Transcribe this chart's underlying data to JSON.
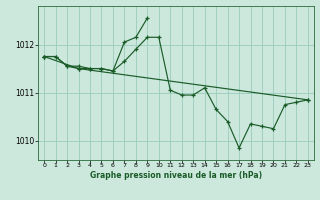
{
  "title": "Graphe pression niveau de la mer (hPa)",
  "background_color": "#cce8dd",
  "grid_color": "#99ccbb",
  "line_color": "#1a5c28",
  "marker_color": "#1a5c28",
  "xlim": [
    -0.5,
    23.5
  ],
  "ylim": [
    1009.6,
    1012.8
  ],
  "yticks": [
    1010,
    1011,
    1012
  ],
  "xticks": [
    0,
    1,
    2,
    3,
    4,
    5,
    6,
    7,
    8,
    9,
    10,
    11,
    12,
    13,
    14,
    15,
    16,
    17,
    18,
    19,
    20,
    21,
    22,
    23
  ],
  "series": [
    {
      "x": [
        0,
        1,
        2,
        3,
        4,
        5,
        6,
        7,
        8,
        9,
        10,
        11,
        12,
        13,
        14,
        15,
        16,
        17,
        18,
        19,
        20,
        21,
        22,
        23
      ],
      "y": [
        1011.75,
        1011.75,
        1011.55,
        1011.55,
        1011.5,
        1011.5,
        1011.45,
        1011.65,
        1011.9,
        1012.15,
        1012.15,
        1011.05,
        1010.95,
        1010.95,
        1011.1,
        1010.65,
        1010.4,
        1009.85,
        1010.35,
        1010.3,
        1010.25,
        1010.75,
        1010.8,
        1010.85
      ]
    },
    {
      "x": [
        0,
        1,
        2,
        3,
        4,
        5,
        6,
        7,
        8,
        9
      ],
      "y": [
        1011.75,
        1011.75,
        1011.55,
        1011.5,
        1011.5,
        1011.5,
        1011.45,
        1012.05,
        1012.15,
        1012.55
      ]
    },
    {
      "x": [
        0,
        3,
        23
      ],
      "y": [
        1011.75,
        1011.5,
        1010.85
      ]
    }
  ]
}
